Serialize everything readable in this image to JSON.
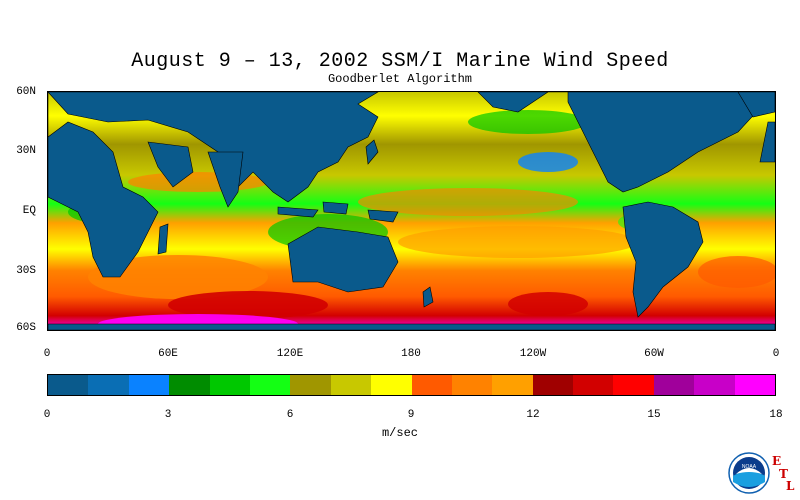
{
  "title": "August 9 – 13, 2002 SSM/I Marine Wind Speed",
  "subtitle": "Goodberlet Algorithm",
  "lat_labels": [
    "60N",
    "30N",
    "EQ",
    "30S",
    "60S"
  ],
  "lon_labels": [
    "0",
    "60E",
    "120E",
    "180",
    "120W",
    "60W",
    "0"
  ],
  "colorbar": {
    "units": "m/sec",
    "tick_labels": [
      "0",
      "3",
      "6",
      "9",
      "12",
      "15",
      "18"
    ],
    "colors": [
      "#0a5a8c",
      "#0a6eb4",
      "#0a82ff",
      "#008c00",
      "#00c800",
      "#14ff14",
      "#a09600",
      "#c8c800",
      "#ffff00",
      "#ff5a00",
      "#ff8200",
      "#ffa000",
      "#a00000",
      "#d20000",
      "#ff0000",
      "#a0009b",
      "#c800c8",
      "#ff00ff"
    ]
  },
  "logo": {
    "text": "NOAA",
    "letters": [
      "E",
      "T",
      "L"
    ]
  }
}
